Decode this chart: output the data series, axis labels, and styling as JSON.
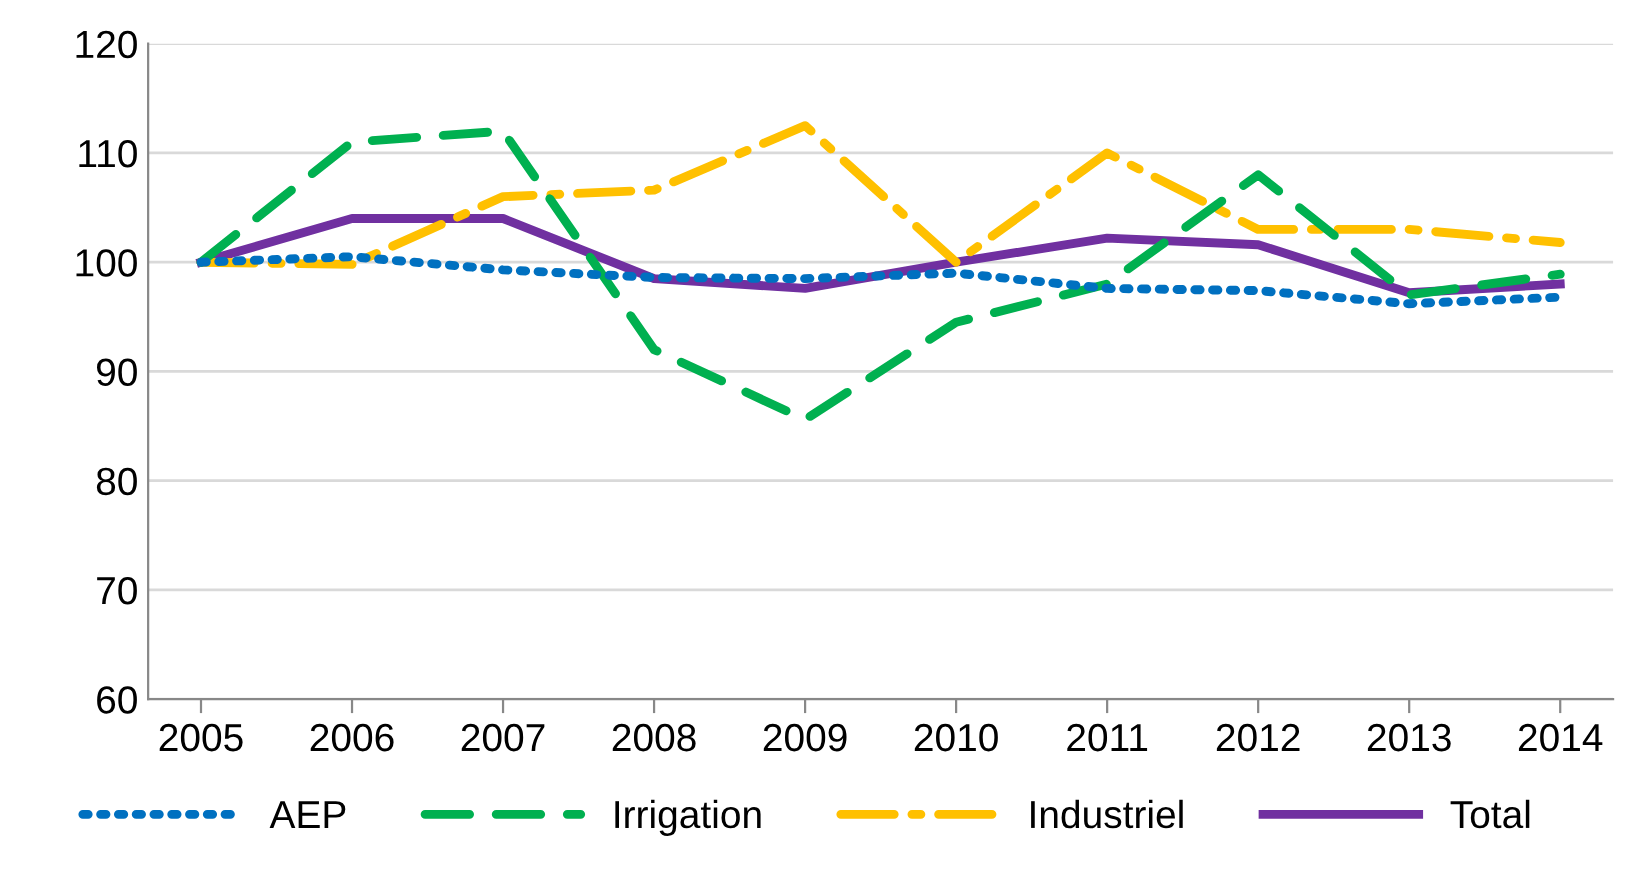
{
  "chart_data": {
    "type": "line",
    "categories": [
      "2005",
      "2006",
      "2007",
      "2008",
      "2009",
      "2010",
      "2011",
      "2012",
      "2013",
      "2014"
    ],
    "series": [
      {
        "name": "AEP",
        "color": "#0070c0",
        "line_style": "dotted",
        "values": [
          100,
          100.5,
          99.3,
          98.6,
          98.5,
          99,
          97.6,
          97.4,
          96.2,
          96.8
        ]
      },
      {
        "name": "Irrigation",
        "color": "#00b050",
        "line_style": "dashed",
        "values": [
          100,
          111,
          112,
          92,
          85.6,
          94.5,
          98,
          108,
          97,
          98.9
        ]
      },
      {
        "name": "Industriel",
        "color": "#ffc000",
        "line_style": "dashdot",
        "values": [
          100,
          99.8,
          106,
          106.6,
          112.5,
          100,
          110,
          103,
          103,
          101.8
        ]
      },
      {
        "name": "Total",
        "color": "#7030a0",
        "line_style": "solid",
        "values": [
          100,
          104,
          104,
          98.5,
          97.6,
          100,
          102.2,
          101.6,
          97.2,
          98
        ]
      }
    ],
    "ylim": [
      60,
      120
    ],
    "yticks": [
      60,
      70,
      80,
      90,
      100,
      110,
      120
    ],
    "grid": "y",
    "legend": "bottom",
    "marker": "none"
  }
}
